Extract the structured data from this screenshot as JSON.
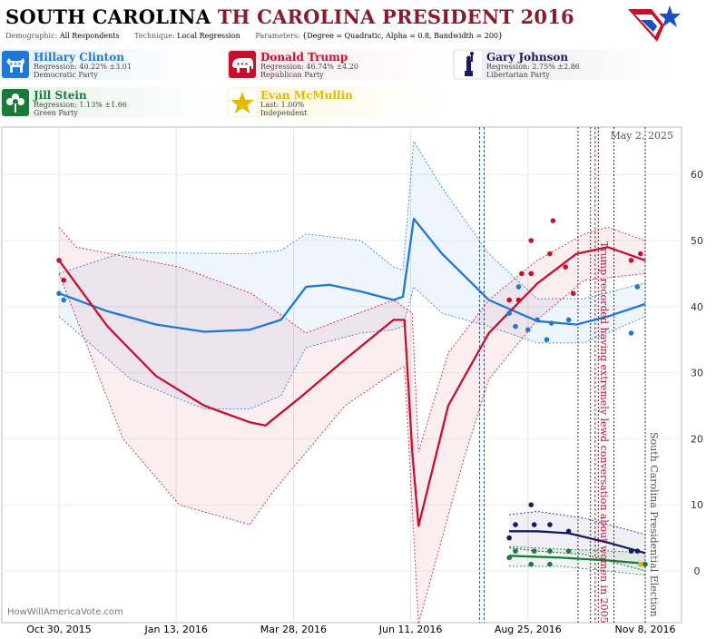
{
  "header": {
    "title_state": "SOUTH CAROLINA",
    "title_rest": "TH CAROLINA PRESIDENT 2016",
    "demographic_label": "Demographic:",
    "demographic_value": "All Respondents",
    "technique_label": "Technique:",
    "technique_value": "Local Regression",
    "parameters_label": "Parameters:",
    "parameters_value": "{Degree = Quadratic, Alpha = 0.8, Bandwidth = 200}"
  },
  "candidates": [
    {
      "name": "Hillary Clinton",
      "stat": "Regression: 40.22% ±3.01",
      "party": "Democratic Party",
      "color": "#1f78d8",
      "bg": "#e8f0fb",
      "icon": "donkey-icon"
    },
    {
      "name": "Donald Trump",
      "stat": "Regression: 46.74% ±4.20",
      "party": "Republican Party",
      "color": "#c8102e",
      "bg": "#fbe7ea",
      "icon": "elephant-icon"
    },
    {
      "name": "Gary Johnson",
      "stat": "Regression: 2.75% ±2.86",
      "party": "Libertarian Party",
      "color": "#1a1a5e",
      "bg": "#ebebf2",
      "icon": "liberty-statue-icon"
    },
    {
      "name": "Jill Stein",
      "stat": "Regression: 1.13% ±1.66",
      "party": "Green Party",
      "color": "#1a7a3a",
      "bg": "#e6f2ea",
      "icon": "flower-icon"
    },
    {
      "name": "Evan McMullin",
      "stat": "Last: 1.00%",
      "party": "Independent",
      "color": "#e6b800",
      "bg": "#fdf6dc",
      "icon": "star-icon"
    }
  ],
  "chart_data": {
    "type": "line",
    "title": "SOUTH CAROLINA TH CAROLINA PRESIDENT 2016",
    "date_label": "May 2, 2025",
    "x_ticks": [
      "Oct 30, 2015",
      "Jan 13, 2016",
      "Mar 28, 2016",
      "Jun 11, 2016",
      "Aug 25, 2016",
      "Nov 8, 2016"
    ],
    "x_range": [
      "2015-10-30",
      "2016-11-08"
    ],
    "y_ticks": [
      0,
      10,
      20,
      30,
      40,
      50,
      60
    ],
    "ylim": [
      -7,
      67
    ],
    "grid": true,
    "series": [
      {
        "name": "Hillary Clinton",
        "color": "#1f78d8",
        "band_color": "#1f78d8",
        "line": [
          [
            "2015-10-30",
            42
          ],
          [
            "2015-11-30",
            39.3
          ],
          [
            "2015-12-31",
            37.3
          ],
          [
            "2016-01-31",
            36.2
          ],
          [
            "2016-02-29",
            36.5
          ],
          [
            "2016-03-20",
            38
          ],
          [
            "2016-04-05",
            43
          ],
          [
            "2016-04-20",
            43.3
          ],
          [
            "2016-05-10",
            42.3
          ],
          [
            "2016-05-31",
            41
          ],
          [
            "2016-06-06",
            41.5
          ],
          [
            "2016-06-13",
            53.3
          ],
          [
            "2016-07-01",
            48
          ],
          [
            "2016-07-31",
            41
          ],
          [
            "2016-08-31",
            37.8
          ],
          [
            "2016-09-25",
            37.3
          ],
          [
            "2016-10-15",
            38.5
          ],
          [
            "2016-11-08",
            40.4
          ]
        ],
        "upper": [
          [
            "2015-10-30",
            45
          ],
          [
            "2015-12-10",
            48.2
          ],
          [
            "2016-02-29",
            48
          ],
          [
            "2016-03-20",
            48.5
          ],
          [
            "2016-04-05",
            51
          ],
          [
            "2016-05-10",
            50
          ],
          [
            "2016-05-31",
            46
          ],
          [
            "2016-06-06",
            45.5
          ],
          [
            "2016-06-13",
            65
          ],
          [
            "2016-07-01",
            58
          ],
          [
            "2016-07-31",
            48
          ],
          [
            "2016-08-31",
            41.2
          ],
          [
            "2016-09-30",
            41.2
          ],
          [
            "2016-11-08",
            43.6
          ]
        ],
        "lower": [
          [
            "2015-10-30",
            38.5
          ],
          [
            "2015-12-15",
            29
          ],
          [
            "2016-01-31",
            24.5
          ],
          [
            "2016-02-29",
            24.5
          ],
          [
            "2016-03-20",
            26.5
          ],
          [
            "2016-04-05",
            33.8
          ],
          [
            "2016-05-10",
            36
          ],
          [
            "2016-05-31",
            36.5
          ],
          [
            "2016-06-06",
            37
          ],
          [
            "2016-06-13",
            43
          ],
          [
            "2016-07-01",
            39
          ],
          [
            "2016-07-31",
            37
          ],
          [
            "2016-08-31",
            34.5
          ],
          [
            "2016-09-30",
            34.5
          ],
          [
            "2016-11-08",
            38.5
          ]
        ],
        "points": [
          [
            "2015-10-30",
            42
          ],
          [
            "2015-11-02",
            41
          ],
          [
            "2016-08-13",
            39
          ],
          [
            "2016-08-17",
            37
          ],
          [
            "2016-08-19",
            43
          ],
          [
            "2016-08-25",
            36.5
          ],
          [
            "2016-08-31",
            38
          ],
          [
            "2016-09-06",
            35
          ],
          [
            "2016-09-09",
            37.5
          ],
          [
            "2016-09-20",
            38
          ],
          [
            "2016-10-30",
            36
          ],
          [
            "2016-11-03",
            43
          ]
        ]
      },
      {
        "name": "Donald Trump",
        "color": "#c8102e",
        "band_color": "#c8102e",
        "line": [
          [
            "2015-10-30",
            47
          ],
          [
            "2015-11-30",
            37
          ],
          [
            "2015-12-31",
            29.5
          ],
          [
            "2016-01-31",
            25
          ],
          [
            "2016-02-29",
            22.5
          ],
          [
            "2016-03-10",
            22
          ],
          [
            "2016-03-31",
            26
          ],
          [
            "2016-04-30",
            32
          ],
          [
            "2016-05-31",
            38
          ],
          [
            "2016-06-07",
            38
          ],
          [
            "2016-06-12",
            18
          ],
          [
            "2016-06-16",
            6.8
          ],
          [
            "2016-07-05",
            25
          ],
          [
            "2016-07-31",
            36
          ],
          [
            "2016-08-31",
            43.5
          ],
          [
            "2016-09-25",
            48
          ],
          [
            "2016-10-15",
            49
          ],
          [
            "2016-11-08",
            47
          ]
        ],
        "upper": [
          [
            "2015-10-30",
            52
          ],
          [
            "2015-11-10",
            49
          ],
          [
            "2016-01-15",
            46
          ],
          [
            "2016-03-01",
            42
          ],
          [
            "2016-04-05",
            36
          ],
          [
            "2016-05-31",
            41
          ],
          [
            "2016-06-12",
            39
          ],
          [
            "2016-06-16",
            18
          ],
          [
            "2016-07-05",
            33
          ],
          [
            "2016-07-31",
            41
          ],
          [
            "2016-08-31",
            47
          ],
          [
            "2016-09-30",
            51
          ],
          [
            "2016-10-15",
            52
          ],
          [
            "2016-11-08",
            50
          ]
        ],
        "lower": [
          [
            "2015-10-30",
            45
          ],
          [
            "2015-12-10",
            20
          ],
          [
            "2016-01-15",
            10
          ],
          [
            "2016-02-29",
            7
          ],
          [
            "2016-03-15",
            12
          ],
          [
            "2016-04-30",
            25
          ],
          [
            "2016-05-31",
            30
          ],
          [
            "2016-06-07",
            31
          ],
          [
            "2016-06-16",
            -8
          ],
          [
            "2016-07-15",
            17
          ],
          [
            "2016-07-31",
            29
          ],
          [
            "2016-08-31",
            38
          ],
          [
            "2016-09-30",
            44
          ],
          [
            "2016-11-08",
            45
          ]
        ],
        "points": [
          [
            "2015-10-30",
            47
          ],
          [
            "2015-11-02",
            44
          ],
          [
            "2016-08-13",
            41
          ],
          [
            "2016-08-19",
            41
          ],
          [
            "2016-08-21",
            45
          ],
          [
            "2016-08-27",
            50
          ],
          [
            "2016-08-27",
            45
          ],
          [
            "2016-09-08",
            48
          ],
          [
            "2016-09-10",
            53
          ],
          [
            "2016-09-18",
            46
          ],
          [
            "2016-09-23",
            42
          ],
          [
            "2016-10-30",
            47
          ],
          [
            "2016-11-05",
            48
          ]
        ]
      },
      {
        "name": "Gary Johnson",
        "color": "#1a1a5e",
        "band_color": "#1a1a5e",
        "line": [
          [
            "2016-08-13",
            6
          ],
          [
            "2016-08-31",
            6
          ],
          [
            "2016-09-20",
            5.7
          ],
          [
            "2016-10-15",
            4.3
          ],
          [
            "2016-11-08",
            2.7
          ]
        ],
        "upper": [
          [
            "2016-08-13",
            8.5
          ],
          [
            "2016-08-31",
            9
          ],
          [
            "2016-09-30",
            8
          ],
          [
            "2016-11-08",
            5.5
          ]
        ],
        "lower": [
          [
            "2016-08-13",
            3.5
          ],
          [
            "2016-08-31",
            3
          ],
          [
            "2016-09-30",
            2.5
          ],
          [
            "2016-11-08",
            0
          ]
        ],
        "points": [
          [
            "2016-08-13",
            5
          ],
          [
            "2016-08-17",
            7
          ],
          [
            "2016-08-27",
            10
          ],
          [
            "2016-08-29",
            7
          ],
          [
            "2016-09-08",
            7
          ],
          [
            "2016-09-20",
            6
          ],
          [
            "2016-10-30",
            3
          ],
          [
            "2016-11-03",
            3
          ]
        ]
      },
      {
        "name": "Jill Stein",
        "color": "#1a7a3a",
        "band_color": "#1a7a3a",
        "line": [
          [
            "2016-08-13",
            2.3
          ],
          [
            "2016-09-15",
            2
          ],
          [
            "2016-10-15",
            1.6
          ],
          [
            "2016-11-08",
            1.1
          ]
        ],
        "upper": [
          [
            "2016-08-13",
            3.7
          ],
          [
            "2016-09-15",
            3.3
          ],
          [
            "2016-11-08",
            2.8
          ]
        ],
        "lower": [
          [
            "2016-08-13",
            0.7
          ],
          [
            "2016-09-15",
            0.7
          ],
          [
            "2016-11-08",
            -0.6
          ]
        ],
        "points": [
          [
            "2016-08-13",
            2
          ],
          [
            "2016-08-17",
            3
          ],
          [
            "2016-08-27",
            1
          ],
          [
            "2016-08-29",
            3
          ],
          [
            "2016-09-08",
            1
          ],
          [
            "2016-09-08",
            3
          ],
          [
            "2016-09-20",
            3
          ],
          [
            "2016-11-08",
            1
          ]
        ]
      },
      {
        "name": "Evan McMullin",
        "color": "#e6b800",
        "points": [
          [
            "2016-11-05",
            1
          ]
        ]
      }
    ],
    "event_lines": [
      {
        "date": "2016-07-25",
        "color": "#1a4fbf",
        "style": "dashed"
      },
      {
        "date": "2016-07-28",
        "color": "#1a4fbf",
        "style": "dashed"
      },
      {
        "date": "2016-09-26",
        "color": "#333333",
        "style": "dotted"
      },
      {
        "date": "2016-10-04",
        "color": "#333333",
        "style": "dotted"
      },
      {
        "date": "2016-10-07",
        "color": "#c8102e",
        "style": "dashed"
      },
      {
        "date": "2016-10-09",
        "color": "#333333",
        "style": "dotted"
      },
      {
        "date": "2016-10-19",
        "color": "#333333",
        "style": "dotted"
      },
      {
        "date": "2016-11-08",
        "color": "#333333",
        "style": "dotted"
      }
    ],
    "annotations": [
      {
        "text": "Trump recorded having extremely lewd conversation about women in 2005",
        "color": "#c8102e"
      },
      {
        "text": "South Carolina Presidential Election",
        "color": "#555555"
      }
    ]
  },
  "footer": {
    "watermark": "HowWillAmericaVote.com"
  }
}
